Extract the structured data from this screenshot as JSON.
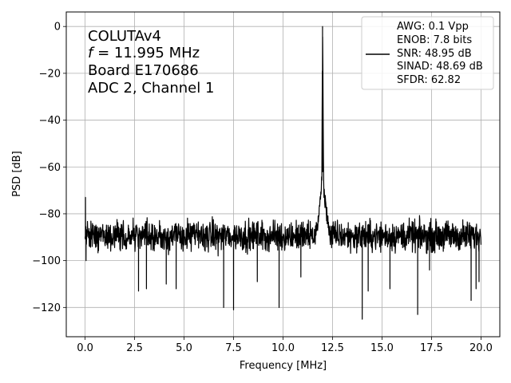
{
  "chart_data": {
    "type": "line",
    "title": "",
    "xlabel": "Frequency [MHz]",
    "ylabel": "PSD [dB]",
    "xlim": [
      -0.95,
      20.95
    ],
    "ylim": [
      -132.5,
      6.2
    ],
    "xticks": [
      0.0,
      2.5,
      5.0,
      7.5,
      10.0,
      12.5,
      15.0,
      17.5,
      20.0
    ],
    "xtick_labels": [
      "0.0",
      "2.5",
      "5.0",
      "7.5",
      "10.0",
      "12.5",
      "15.0",
      "17.5",
      "20.0"
    ],
    "yticks": [
      0,
      -20,
      -40,
      -60,
      -80,
      -100,
      -120
    ],
    "ytick_labels": [
      "0",
      "−20",
      "−40",
      "−60",
      "−80",
      "−100",
      "−120"
    ],
    "grid": true,
    "line_color": "#000000",
    "series": [
      {
        "name": "",
        "x_range": [
          0.0,
          20.0
        ],
        "noise_floor_db": -90,
        "noise_band_db": [
          -102,
          -79
        ],
        "signal_peak": {
          "x": 11.995,
          "y": 0.0
        },
        "peak_skirt": [
          [
            11.6,
            -88
          ],
          [
            11.75,
            -82
          ],
          [
            11.85,
            -75
          ],
          [
            11.93,
            -68
          ],
          [
            11.96,
            -62
          ],
          [
            11.99,
            -10
          ],
          [
            12.0,
            0.0
          ],
          [
            12.01,
            -12
          ],
          [
            12.05,
            -66
          ],
          [
            12.1,
            -72
          ],
          [
            12.2,
            -78
          ],
          [
            12.35,
            -85
          ]
        ],
        "spikes": [
          {
            "x": 0.02,
            "y": -73
          },
          {
            "x": 0.05,
            "y": -100
          },
          {
            "x": 2.7,
            "y": -113
          },
          {
            "x": 3.1,
            "y": -112
          },
          {
            "x": 4.1,
            "y": -110
          },
          {
            "x": 4.6,
            "y": -112
          },
          {
            "x": 7.0,
            "y": -120
          },
          {
            "x": 7.5,
            "y": -121
          },
          {
            "x": 8.7,
            "y": -109
          },
          {
            "x": 9.8,
            "y": -120
          },
          {
            "x": 10.9,
            "y": -107
          },
          {
            "x": 14.0,
            "y": -125
          },
          {
            "x": 14.3,
            "y": -113
          },
          {
            "x": 15.4,
            "y": -112
          },
          {
            "x": 16.8,
            "y": -123
          },
          {
            "x": 17.4,
            "y": -104
          },
          {
            "x": 19.5,
            "y": -117
          },
          {
            "x": 19.75,
            "y": -112
          },
          {
            "x": 19.9,
            "y": -109
          }
        ]
      }
    ]
  },
  "annotation": {
    "device": "COLUTAv4",
    "freq_symbol": "f",
    "freq_value": " = 11.995 MHz",
    "board": "Board E170686",
    "adc_channel": "ADC 2, Channel 1"
  },
  "legend": {
    "position": "top-right",
    "lines": [
      "AWG: 0.1 Vpp",
      "ENOB: 7.8 bits",
      "SNR: 48.95 dB",
      "SINAD: 48.69 dB",
      "SFDR: 62.82"
    ]
  }
}
